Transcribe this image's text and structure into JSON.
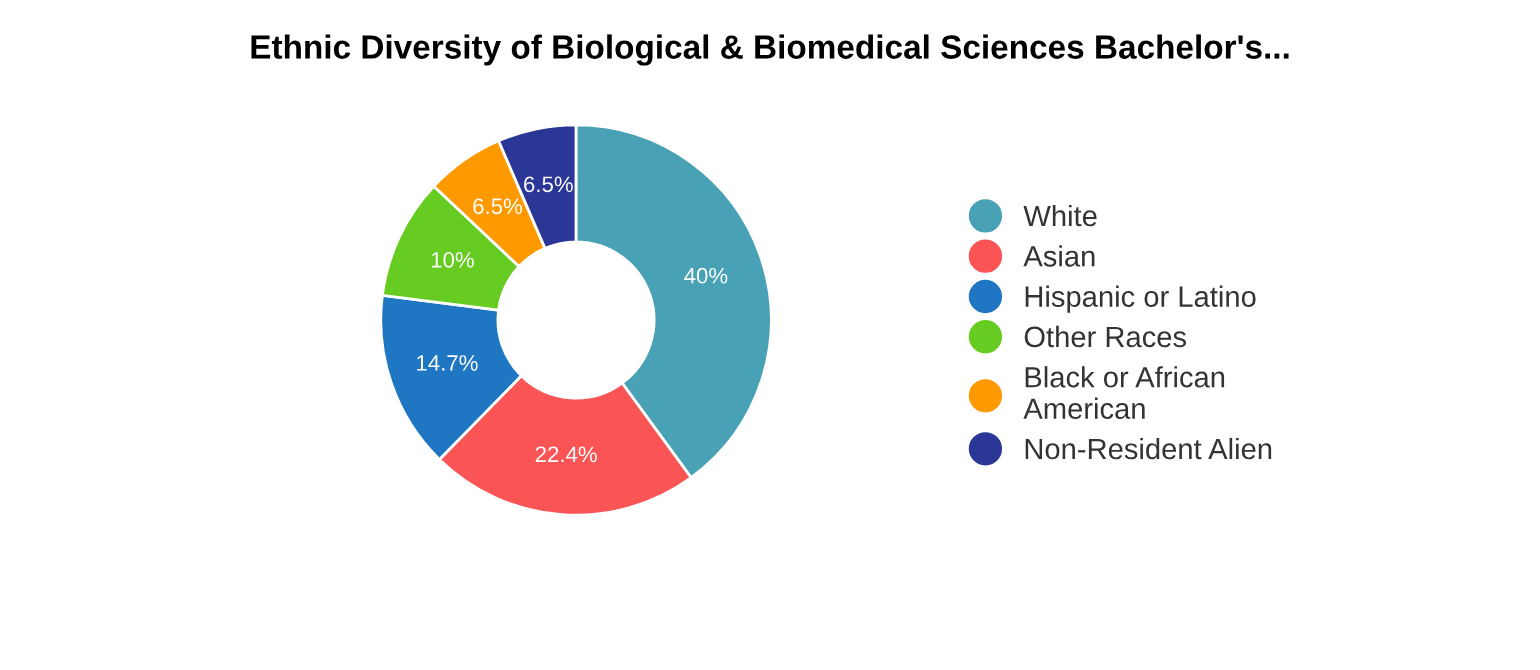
{
  "chart_data": {
    "type": "donut",
    "title": "Ethnic Diversity of Biological & Biomedical Sciences Bachelor's...",
    "categories": [
      "White",
      "Asian",
      "Hispanic or Latino",
      "Other Races",
      "Black or African American",
      "Non-Resident Alien"
    ],
    "values": [
      40,
      22.4,
      14.7,
      10,
      6.5,
      6.5
    ],
    "colors": [
      "#49a1b5",
      "#fb5454",
      "#1f77c4",
      "#66cc22",
      "#ff9900",
      "#2b3797"
    ],
    "value_labels": [
      "40%",
      "22.4%",
      "14.7%",
      "10%",
      "6.5%",
      "6.5%"
    ],
    "legend": "right"
  }
}
